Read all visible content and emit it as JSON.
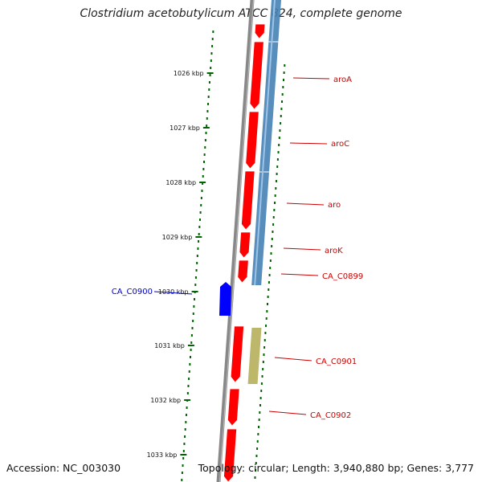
{
  "title": "Clostridium acetobutylicum ATCC 824, complete genome",
  "footer": {
    "accession": "Accession: NC_003030",
    "topology": "Topology: circular; Length: 3,940,880 bp; Genes: 3,777"
  },
  "colors": {
    "forward_gene": "#ff0000",
    "reverse_gene": "#0000ff",
    "blue_track": "#4682b4",
    "khaki_track": "#bdb76b",
    "backbone": "#808080",
    "tick": "#006400",
    "label_red": "#cc0000",
    "label_blue": "#0000cc"
  },
  "ruler": {
    "ticks": [
      {
        "kbp": 1026,
        "label": "1026 kbp"
      },
      {
        "kbp": 1027,
        "label": "1027 kbp"
      },
      {
        "kbp": 1028,
        "label": "1028 kbp"
      },
      {
        "kbp": 1029,
        "label": "1029 kbp"
      },
      {
        "kbp": 1030,
        "label": "1030 kbp"
      },
      {
        "kbp": 1031,
        "label": "1031 kbp"
      },
      {
        "kbp": 1032,
        "label": "1032 kbp"
      },
      {
        "kbp": 1033,
        "label": "1033 kbp"
      }
    ]
  },
  "gene_labels": [
    {
      "name": "aroA",
      "strand": "+"
    },
    {
      "name": "aroC",
      "strand": "+"
    },
    {
      "name": "aro",
      "strand": "+"
    },
    {
      "name": "aroK",
      "strand": "+"
    },
    {
      "name": "CA_C0899",
      "strand": "+"
    },
    {
      "name": "CA_C0900",
      "strand": "-"
    },
    {
      "name": "CA_C0901",
      "strand": "+"
    },
    {
      "name": "CA_C0902",
      "strand": "+"
    }
  ]
}
